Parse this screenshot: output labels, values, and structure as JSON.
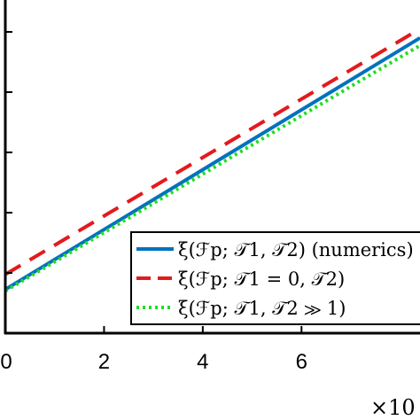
{
  "chart_data": {
    "type": "line",
    "x_tick_labels": [
      "0",
      "2",
      "4",
      "6"
    ],
    "x_exponent_label": "×10",
    "xlim": [
      0,
      8.4
    ],
    "ylim": [
      0,
      1
    ],
    "grid": false,
    "legend_placement": "lower-right",
    "series": [
      {
        "name": "ξ(ℱp; 𝒯1, 𝒯2) (numerics)",
        "color": "#0072BD",
        "style": "solid",
        "x": [
          0,
          8.4
        ],
        "y": [
          0.145,
          0.98
        ]
      },
      {
        "name": "ξ(ℱp; 𝒯1 = 0, 𝒯2)",
        "color": "#E31A1C",
        "style": "dashed",
        "x": [
          0,
          8.4
        ],
        "y": [
          0.195,
          1.01
        ]
      },
      {
        "name": "ξ(ℱp; 𝒯1, 𝒯2 ≫ 1)",
        "color": "#22DD22",
        "style": "dotted",
        "x": [
          0,
          8.4
        ],
        "y": [
          0.14,
          0.955
        ]
      }
    ]
  }
}
